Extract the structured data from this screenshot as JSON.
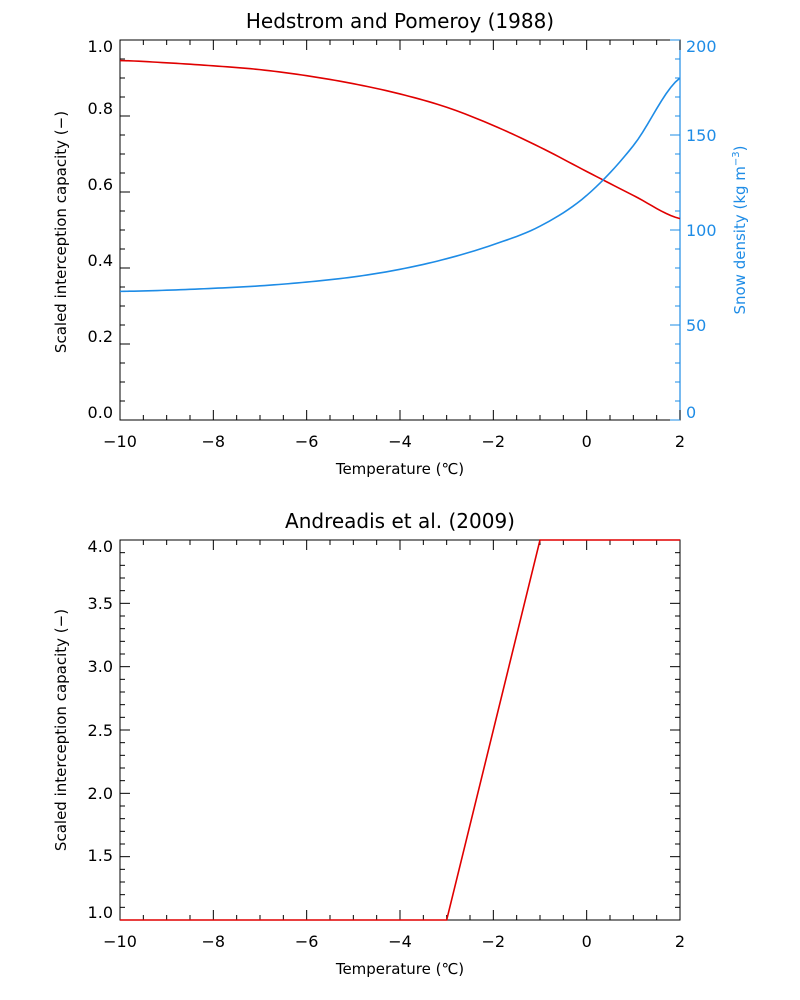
{
  "colors": {
    "axis": "#000000",
    "capacity_series": "#e00000",
    "density_series": "#1e8ce6"
  },
  "chart_data": [
    {
      "type": "line",
      "title": "Hedstrom and Pomeroy (1988)",
      "xlabel": "Temperature (℃)",
      "ylabel": "Scaled interception capacity (−)",
      "y2label_main": "Snow density (kg m",
      "y2label_exp": "−3",
      "y2label_close": ")",
      "xlim": [
        -10,
        2
      ],
      "ylim": [
        0,
        1
      ],
      "y2lim": [
        0,
        200
      ],
      "x_ticks": [
        "−10",
        "−8",
        "−6",
        "−4",
        "−2",
        "0",
        "2"
      ],
      "y_ticks": [
        "0.0",
        "0.2",
        "0.4",
        "0.6",
        "0.8",
        "1.0"
      ],
      "y2_ticks": [
        "0",
        "50",
        "100",
        "150",
        "200"
      ],
      "grid": false,
      "series": [
        {
          "axis": "left",
          "color": "#e00000",
          "x": [
            -10,
            -9,
            -8,
            -7,
            -6,
            -5,
            -4,
            -3,
            -2,
            -1,
            0,
            1,
            2
          ],
          "values": [
            0.946,
            0.94,
            0.932,
            0.922,
            0.906,
            0.885,
            0.858,
            0.823,
            0.775,
            0.718,
            0.654,
            0.591,
            0.53
          ]
        },
        {
          "axis": "right",
          "color": "#1e8ce6",
          "x": [
            -10,
            -9,
            -8,
            -7,
            -6,
            -5,
            -4,
            -3,
            -2,
            -1,
            0,
            1,
            2
          ],
          "values": [
            67.7,
            68.3,
            69.3,
            70.6,
            72.6,
            75.3,
            79.3,
            84.9,
            92.3,
            102.0,
            118.2,
            144.4,
            180
          ]
        }
      ]
    },
    {
      "type": "line",
      "title": "Andreadis et al. (2009)",
      "xlabel": "Temperature (℃)",
      "ylabel": "Scaled interception capacity (−)",
      "xlim": [
        -10,
        2
      ],
      "ylim": [
        1,
        4
      ],
      "x_ticks": [
        "−10",
        "−8",
        "−6",
        "−4",
        "−2",
        "0",
        "2"
      ],
      "y_ticks": [
        "1.0",
        "1.5",
        "2.0",
        "2.5",
        "3.0",
        "3.5",
        "4.0"
      ],
      "grid": false,
      "series": [
        {
          "axis": "left",
          "color": "#e00000",
          "x": [
            -10,
            -3,
            -1,
            2
          ],
          "values": [
            1,
            1,
            4,
            4
          ]
        }
      ]
    }
  ]
}
